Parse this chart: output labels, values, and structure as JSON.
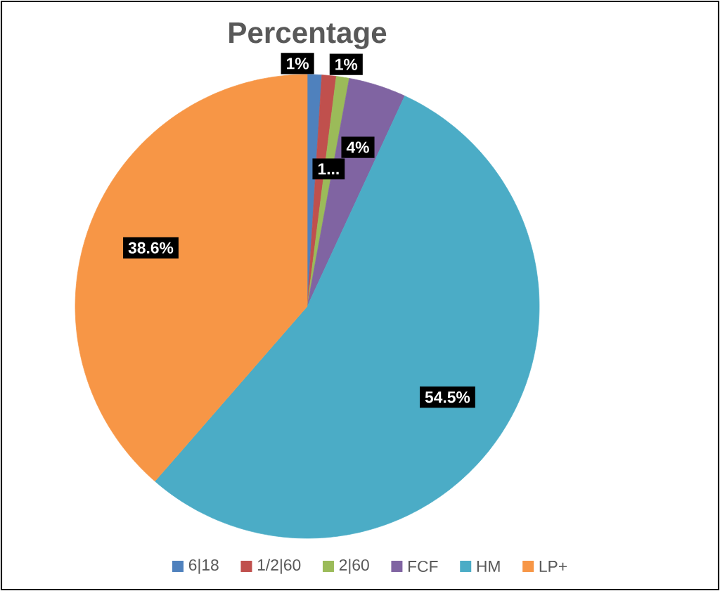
{
  "chart_data": {
    "type": "pie",
    "title": "Percentage",
    "categories": [
      "6|18",
      "1/2|60",
      "2|60",
      "FCF",
      "HM",
      "LP+"
    ],
    "values": [
      1,
      1,
      0.9,
      4,
      54.5,
      38.6
    ],
    "colors": [
      "#4f81bd",
      "#c0504d",
      "#9bbb59",
      "#8064a2",
      "#4bacc6",
      "#f79646"
    ],
    "value_labels": [
      "1%",
      "1%",
      "1...",
      "4%",
      "54.5%",
      "38.6%"
    ],
    "legend": "bottom"
  }
}
